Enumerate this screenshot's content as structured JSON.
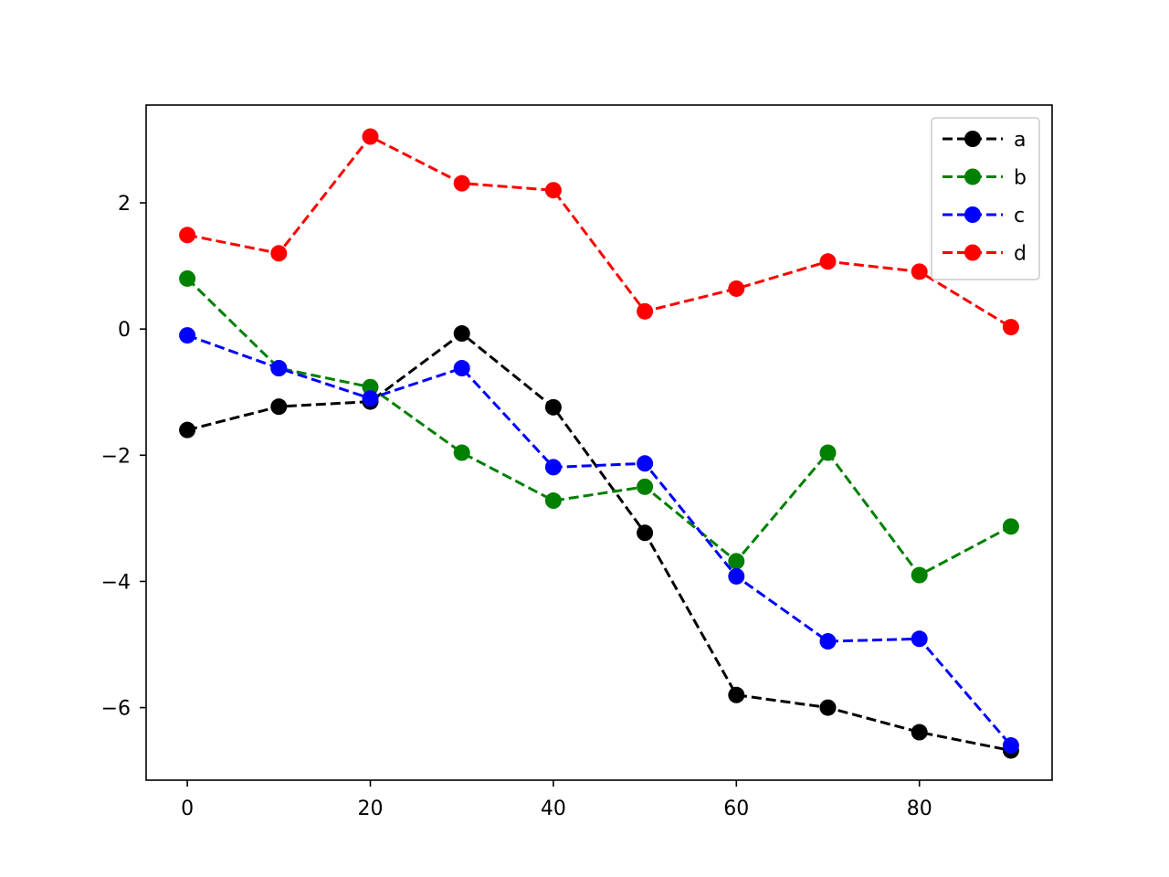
{
  "chart_data": {
    "type": "line",
    "title": "",
    "xlabel": "",
    "ylabel": "",
    "xlim": [
      -4.5,
      94.5
    ],
    "ylim": [
      -7.15,
      3.55
    ],
    "x": [
      0,
      10,
      20,
      30,
      40,
      50,
      60,
      70,
      80,
      90
    ],
    "xticks": [
      0,
      20,
      40,
      60,
      80
    ],
    "yticks": [
      -6,
      -4,
      -2,
      0,
      2
    ],
    "xtick_labels": [
      "0",
      "20",
      "40",
      "60",
      "80"
    ],
    "ytick_labels": [
      "−6",
      "−4",
      "−2",
      "0",
      "2"
    ],
    "grid": false,
    "legend_position": "top-right",
    "line_style": "dashed",
    "marker": "circle",
    "series": [
      {
        "name": "a",
        "color": "#000000",
        "values": [
          -1.6,
          -1.23,
          -1.15,
          -0.07,
          -1.24,
          -3.23,
          -5.8,
          -6.0,
          -6.39,
          -6.68
        ]
      },
      {
        "name": "b",
        "color": "#008000",
        "values": [
          0.8,
          -0.62,
          -0.92,
          -1.96,
          -2.72,
          -2.5,
          -3.68,
          -1.96,
          -3.9,
          -3.13
        ]
      },
      {
        "name": "c",
        "color": "#0000ff",
        "values": [
          -0.1,
          -0.62,
          -1.1,
          -0.62,
          -2.19,
          -2.13,
          -3.92,
          -4.95,
          -4.91,
          -6.6
        ]
      },
      {
        "name": "d",
        "color": "#ff0000",
        "values": [
          1.49,
          1.2,
          3.05,
          2.31,
          2.2,
          0.28,
          0.64,
          1.07,
          0.91,
          0.03
        ]
      }
    ]
  }
}
